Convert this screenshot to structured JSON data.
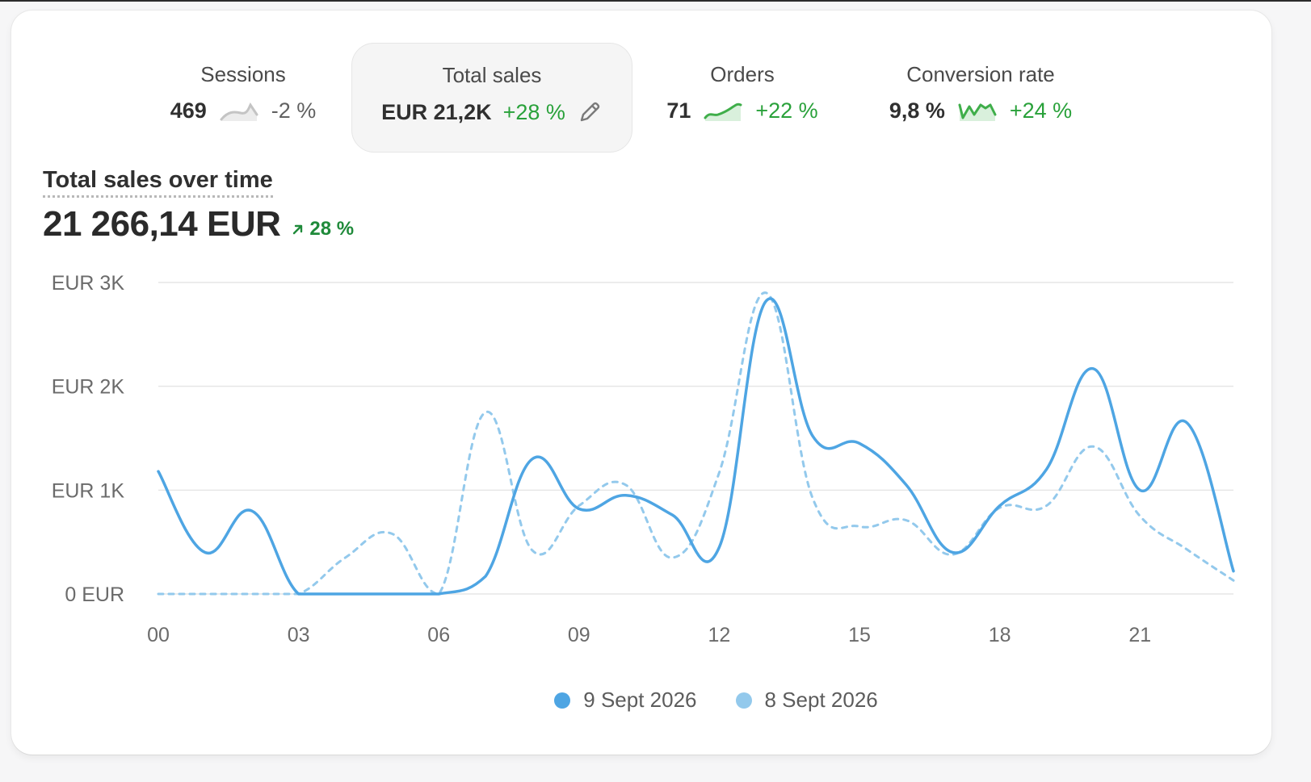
{
  "metrics": [
    {
      "label": "Sessions",
      "value": "469",
      "change": "-2 %",
      "trend": "neg"
    },
    {
      "label": "Total sales",
      "value": "EUR 21,2K",
      "change": "+28 %",
      "trend": "pos",
      "selected": true
    },
    {
      "label": "Orders",
      "value": "71",
      "change": "+22 %",
      "trend": "pos"
    },
    {
      "label": "Conversion rate",
      "value": "9,8 %",
      "change": "+24 %",
      "trend": "pos"
    }
  ],
  "section": {
    "title": "Total sales over time",
    "total": "21 266,14 EUR",
    "change": "28 %"
  },
  "colors": {
    "primary": "#4ea5e3",
    "comparison": "#93c9ec",
    "positive": "#29a13a",
    "grid": "#e6e6e6"
  },
  "chart_data": {
    "type": "line",
    "x": [
      0,
      1,
      2,
      3,
      4,
      5,
      6,
      7,
      8,
      9,
      10,
      11,
      12,
      13,
      14,
      15,
      16,
      17,
      18,
      19,
      20,
      21,
      22,
      23
    ],
    "x_ticks": [
      "00",
      "03",
      "06",
      "09",
      "12",
      "15",
      "18",
      "21"
    ],
    "x_tick_values": [
      0,
      3,
      6,
      9,
      12,
      15,
      18,
      21
    ],
    "y_ticks": [
      "0 EUR",
      "EUR 1K",
      "EUR 2K",
      "EUR 3K"
    ],
    "y_tick_values": [
      0,
      1000,
      2000,
      3000
    ],
    "ylim": [
      0,
      3000
    ],
    "xlim": [
      0,
      23
    ],
    "grid": true,
    "legend_position": "bottom",
    "series": [
      {
        "name": "9 Sept 2026",
        "style": "solid",
        "values": [
          1180,
          400,
          800,
          0,
          0,
          0,
          0,
          170,
          1300,
          820,
          950,
          760,
          450,
          2820,
          1520,
          1450,
          1050,
          400,
          850,
          1200,
          2170,
          1000,
          1650,
          220
        ]
      },
      {
        "name": "8 Sept 2026",
        "style": "dashed",
        "values": [
          0,
          0,
          0,
          0,
          350,
          580,
          0,
          1750,
          420,
          850,
          1050,
          350,
          1170,
          2900,
          920,
          650,
          710,
          380,
          830,
          850,
          1420,
          750,
          430,
          130
        ]
      }
    ]
  }
}
